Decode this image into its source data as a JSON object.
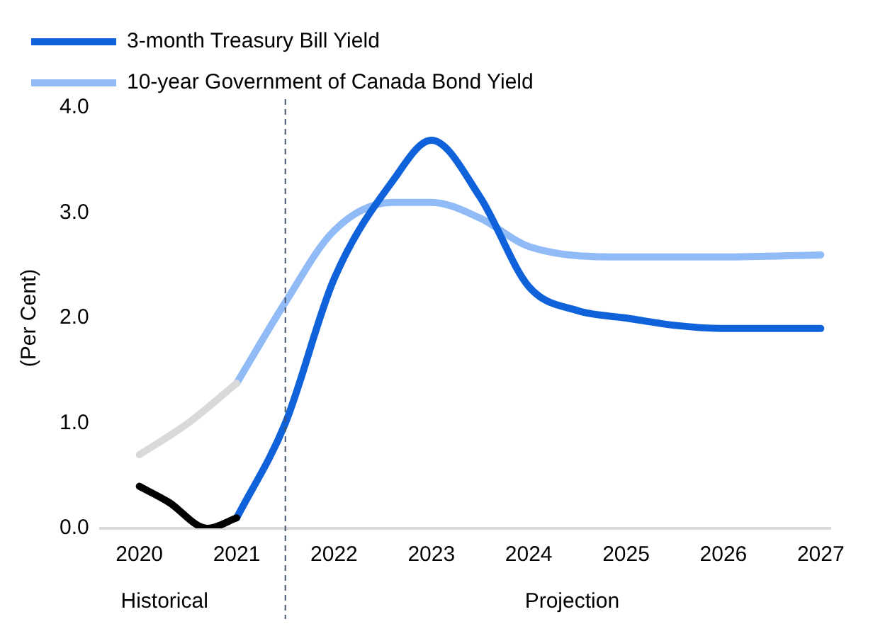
{
  "chart_data": {
    "type": "line",
    "ylabel": "(Per Cent)",
    "xlim": [
      2019.6,
      2027.1
    ],
    "xticks": [
      2020,
      2021,
      2022,
      2023,
      2024,
      2025,
      2026,
      2027
    ],
    "ylim": [
      0,
      4
    ],
    "yticks": [
      {
        "value": 0,
        "label": "0.0"
      },
      {
        "value": 1,
        "label": "1.0"
      },
      {
        "value": 2,
        "label": "2.0"
      },
      {
        "value": 3,
        "label": "3.0"
      },
      {
        "value": 4,
        "label": "4.0"
      }
    ],
    "grid": false,
    "legend": "top left",
    "marker": "none",
    "series": [
      {
        "color": "#000000",
        "x": [
          2020,
          2020.3,
          2020.7,
          2021
        ],
        "values": [
          0.4,
          0.25,
          0.0,
          0.1
        ]
      },
      {
        "color": "#d9d9d9",
        "x": [
          2020,
          2020.5,
          2021
        ],
        "values": [
          0.7,
          1.0,
          1.38
        ]
      },
      {
        "name": "3-month Treasury Bill Yield",
        "color": "#0f62d9",
        "x": [
          2021,
          2021.5,
          2022,
          2022.6,
          2023,
          2023.5,
          2024,
          2024.5,
          2025,
          2025.5,
          2026,
          2027
        ],
        "values": [
          0.1,
          1.0,
          2.37,
          3.3,
          3.69,
          3.15,
          2.3,
          2.07,
          2.0,
          1.93,
          1.9,
          1.9
        ]
      },
      {
        "name": "10-year Government of Canada Bond Yield",
        "color": "#91bbf7",
        "x": [
          2021,
          2021.5,
          2022,
          2022.6,
          2023,
          2023.5,
          2024,
          2025,
          2026,
          2027
        ],
        "values": [
          1.38,
          2.15,
          2.83,
          3.1,
          3.1,
          2.95,
          2.68,
          2.58,
          2.58,
          2.6
        ]
      }
    ],
    "ref_lines": [
      {
        "axis": "x",
        "value": 2021.5,
        "color": "#44546a",
        "line_style": "dashed"
      }
    ],
    "annotations": [
      "Historical",
      "Projection"
    ]
  }
}
